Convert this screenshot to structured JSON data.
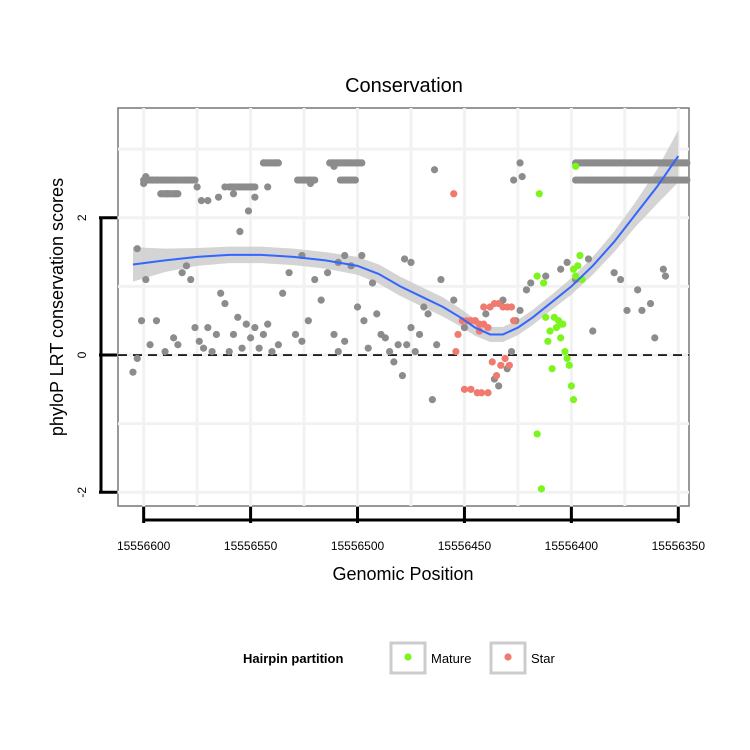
{
  "chart_data": {
    "type": "scatter",
    "title": "Conservation",
    "xlabel": "Genomic Position",
    "ylabel": "phyloP LRT conservation scores",
    "xlim": [
      15556345,
      15556612
    ],
    "ylim": [
      -2.2,
      3.6
    ],
    "x_reversed": true,
    "x_ticks": [
      15556600,
      15556550,
      15556500,
      15556450,
      15556400,
      15556350
    ],
    "x_tick_labels": [
      "15556600",
      "15556550",
      "15556500",
      "15556450",
      "15556400",
      "15556350"
    ],
    "y_ticks": [
      -2,
      0,
      2
    ],
    "y_tick_labels": [
      "-2",
      "0",
      "2"
    ],
    "reference_line": {
      "y": 0,
      "style": "dashed"
    },
    "legend": {
      "title": "Hairpin partition",
      "position": "bottom",
      "entries": [
        {
          "label": "Mature",
          "color": "#7cf51d"
        },
        {
          "label": "Star",
          "color": "#f07a6e"
        }
      ]
    },
    "colors": {
      "Other": "#8c8c8c",
      "Mature": "#7cf51d",
      "Star": "#f07a6e",
      "smooth": "#3366ff",
      "band": "#cccccc"
    },
    "series": [
      {
        "name": "Other",
        "points": [
          [
            15556605,
            -0.25
          ],
          [
            15556603,
            -0.05
          ],
          [
            15556601,
            0.5
          ],
          [
            15556599,
            1.1
          ],
          [
            15556597,
            0.15
          ],
          [
            15556594,
            0.5
          ],
          [
            15556590,
            0.05
          ],
          [
            15556586,
            0.25
          ],
          [
            15556584,
            0.15
          ],
          [
            15556582,
            1.2
          ],
          [
            15556580,
            1.3
          ],
          [
            15556578,
            1.1
          ],
          [
            15556576,
            0.4
          ],
          [
            15556574,
            0.2
          ],
          [
            15556572,
            0.1
          ],
          [
            15556570,
            0.4
          ],
          [
            15556568,
            0.05
          ],
          [
            15556566,
            0.3
          ],
          [
            15556564,
            0.9
          ],
          [
            15556562,
            0.75
          ],
          [
            15556560,
            0.05
          ],
          [
            15556558,
            0.3
          ],
          [
            15556556,
            0.55
          ],
          [
            15556554,
            0.1
          ],
          [
            15556552,
            0.45
          ],
          [
            15556550,
            0.25
          ],
          [
            15556548,
            0.4
          ],
          [
            15556546,
            0.1
          ],
          [
            15556544,
            0.3
          ],
          [
            15556542,
            0.45
          ],
          [
            15556540,
            0.05
          ],
          [
            15556537,
            0.15
          ],
          [
            15556535,
            0.9
          ],
          [
            15556532,
            1.2
          ],
          [
            15556529,
            0.3
          ],
          [
            15556526,
            0.2
          ],
          [
            15556523,
            0.5
          ],
          [
            15556520,
            1.1
          ],
          [
            15556517,
            0.8
          ],
          [
            15556514,
            1.2
          ],
          [
            15556511,
            0.3
          ],
          [
            15556509,
            0.05
          ],
          [
            15556506,
            0.2
          ],
          [
            15556503,
            1.3
          ],
          [
            15556500,
            0.7
          ],
          [
            15556497,
            0.5
          ],
          [
            15556495,
            0.1
          ],
          [
            15556493,
            1.05
          ],
          [
            15556491,
            0.6
          ],
          [
            15556489,
            0.3
          ],
          [
            15556487,
            0.25
          ],
          [
            15556485,
            0.05
          ],
          [
            15556483,
            -0.1
          ],
          [
            15556481,
            0.15
          ],
          [
            15556479,
            -0.3
          ],
          [
            15556477,
            0.15
          ],
          [
            15556475,
            0.4
          ],
          [
            15556473,
            0.05
          ],
          [
            15556471,
            0.3
          ],
          [
            15556469,
            0.7
          ],
          [
            15556467,
            0.6
          ],
          [
            15556465,
            -0.65
          ],
          [
            15556463,
            0.15
          ],
          [
            15556461,
            1.1
          ],
          [
            15556455,
            0.8
          ],
          [
            15556450,
            0.4
          ],
          [
            15556445,
            0.5
          ],
          [
            15556440,
            0.6
          ],
          [
            15556436,
            -0.35
          ],
          [
            15556434,
            -0.45
          ],
          [
            15556432,
            0.8
          ],
          [
            15556430,
            -0.2
          ],
          [
            15556428,
            0.05
          ],
          [
            15556426,
            0.5
          ],
          [
            15556424,
            0.65
          ],
          [
            15556421,
            0.95
          ],
          [
            15556419,
            1.05
          ],
          [
            15556412,
            1.15
          ],
          [
            15556405,
            1.25
          ],
          [
            15556402,
            1.35
          ],
          [
            15556398,
            1.1
          ],
          [
            15556392,
            1.4
          ],
          [
            15556390,
            0.35
          ],
          [
            15556380,
            1.2
          ],
          [
            15556377,
            1.1
          ],
          [
            15556374,
            0.65
          ],
          [
            15556369,
            0.95
          ],
          [
            15556367,
            0.65
          ],
          [
            15556363,
            0.75
          ],
          [
            15556361,
            0.25
          ],
          [
            15556357,
            1.25
          ],
          [
            15556356,
            1.15
          ],
          [
            15556603,
            1.55
          ],
          [
            15556600,
            2.5
          ],
          [
            15556599,
            2.6
          ],
          [
            15556596,
            2.55
          ],
          [
            15556594,
            2.55
          ],
          [
            15556592,
            2.35
          ],
          [
            15556589,
            2.35
          ],
          [
            15556585,
            2.35
          ],
          [
            15556575,
            2.45
          ],
          [
            15556573,
            2.25
          ],
          [
            15556570,
            2.25
          ],
          [
            15556565,
            2.3
          ],
          [
            15556562,
            2.45
          ],
          [
            15556558,
            2.35
          ],
          [
            15556555,
            1.8
          ],
          [
            15556551,
            2.1
          ],
          [
            15556548,
            2.3
          ],
          [
            15556542,
            2.45
          ],
          [
            15556538,
            2.8
          ],
          [
            15556522,
            2.5
          ],
          [
            15556511,
            2.75
          ],
          [
            15556505,
            2.55
          ],
          [
            15556464,
            2.7
          ],
          [
            15556427,
            2.55
          ],
          [
            15556423,
            2.6
          ],
          [
            15556424,
            2.8
          ],
          [
            15556526,
            1.45
          ],
          [
            15556498,
            1.45
          ],
          [
            15556478,
            1.4
          ],
          [
            15556475,
            1.35
          ],
          [
            15556506,
            1.45
          ],
          [
            15556509,
            1.35
          ]
        ],
        "bands": [
          {
            "y": 2.55,
            "x_from": 15556600,
            "x_to": 15556576
          },
          {
            "y": 2.35,
            "x_from": 15556591,
            "x_to": 15556584
          },
          {
            "y": 2.45,
            "x_from": 15556560,
            "x_to": 15556548
          },
          {
            "y": 2.8,
            "x_from": 15556544,
            "x_to": 15556537
          },
          {
            "y": 2.55,
            "x_from": 15556528,
            "x_to": 15556520
          },
          {
            "y": 2.8,
            "x_from": 15556513,
            "x_to": 15556498
          },
          {
            "y": 2.55,
            "x_from": 15556508,
            "x_to": 15556501
          },
          {
            "y": 2.8,
            "x_from": 15556398,
            "x_to": 15556346
          },
          {
            "y": 2.55,
            "x_from": 15556398,
            "x_to": 15556346
          }
        ]
      },
      {
        "name": "Star",
        "points": [
          [
            15556455,
            2.35
          ],
          [
            15556454,
            0.05
          ],
          [
            15556453,
            0.3
          ],
          [
            15556451,
            0.5
          ],
          [
            15556449,
            0.5
          ],
          [
            15556447,
            0.5
          ],
          [
            15556445,
            0.5
          ],
          [
            15556443,
            0.45
          ],
          [
            15556441,
            0.45
          ],
          [
            15556439,
            0.4
          ],
          [
            15556443,
            0.35
          ],
          [
            15556441,
            0.7
          ],
          [
            15556438,
            0.7
          ],
          [
            15556436,
            0.75
          ],
          [
            15556434,
            0.75
          ],
          [
            15556432,
            0.7
          ],
          [
            15556430,
            0.7
          ],
          [
            15556428,
            0.7
          ],
          [
            15556450,
            -0.5
          ],
          [
            15556447,
            -0.5
          ],
          [
            15556444,
            -0.55
          ],
          [
            15556442,
            -0.55
          ],
          [
            15556439,
            -0.55
          ],
          [
            15556437,
            -0.1
          ],
          [
            15556435,
            -0.3
          ],
          [
            15556433,
            -0.15
          ],
          [
            15556431,
            -0.05
          ],
          [
            15556429,
            -0.15
          ],
          [
            15556427,
            0.5
          ]
        ]
      },
      {
        "name": "Mature",
        "points": [
          [
            15556415,
            2.35
          ],
          [
            15556416,
            1.15
          ],
          [
            15556413,
            1.05
          ],
          [
            15556412,
            0.55
          ],
          [
            15556411,
            0.2
          ],
          [
            15556410,
            0.35
          ],
          [
            15556408,
            0.55
          ],
          [
            15556407,
            0.4
          ],
          [
            15556406,
            0.5
          ],
          [
            15556405,
            0.25
          ],
          [
            15556404,
            0.45
          ],
          [
            15556403,
            0.05
          ],
          [
            15556402,
            -0.05
          ],
          [
            15556401,
            -0.15
          ],
          [
            15556400,
            -0.45
          ],
          [
            15556399,
            -0.65
          ],
          [
            15556398,
            1.15
          ],
          [
            15556397,
            1.3
          ],
          [
            15556396,
            1.45
          ],
          [
            15556395,
            1.1
          ],
          [
            15556399,
            1.25
          ],
          [
            15556398,
            2.75
          ],
          [
            15556416,
            -1.15
          ],
          [
            15556414,
            -1.95
          ],
          [
            15556409,
            -0.2
          ],
          [
            15556405,
            0.45
          ]
        ]
      }
    ],
    "smooth_fit": {
      "x": [
        15556605,
        15556590,
        15556575,
        15556560,
        15556545,
        15556530,
        15556515,
        15556500,
        15556490,
        15556480,
        15556470,
        15556460,
        15556452,
        15556445,
        15556438,
        15556432,
        15556425,
        15556418,
        15556410,
        15556400,
        15556390,
        15556380,
        15556370,
        15556360,
        15556350
      ],
      "y": [
        1.32,
        1.38,
        1.43,
        1.46,
        1.46,
        1.43,
        1.38,
        1.3,
        1.18,
        1.0,
        0.85,
        0.7,
        0.55,
        0.4,
        0.3,
        0.3,
        0.4,
        0.55,
        0.75,
        1.0,
        1.3,
        1.65,
        2.05,
        2.45,
        2.9
      ],
      "band_halfwidth": [
        0.25,
        0.17,
        0.13,
        0.12,
        0.12,
        0.12,
        0.12,
        0.13,
        0.14,
        0.14,
        0.14,
        0.14,
        0.13,
        0.12,
        0.11,
        0.11,
        0.11,
        0.11,
        0.11,
        0.12,
        0.13,
        0.15,
        0.18,
        0.25,
        0.38
      ]
    }
  }
}
